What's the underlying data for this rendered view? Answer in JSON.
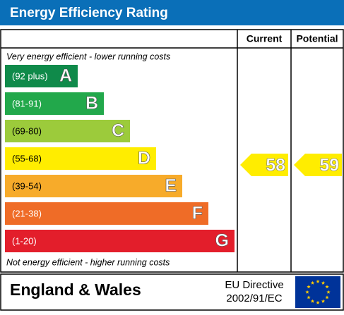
{
  "header": {
    "title": "Energy Efficiency Rating"
  },
  "columns": {
    "current": "Current",
    "potential": "Potential"
  },
  "top_note": "Very energy efficient - lower running costs",
  "bottom_note": "Not energy efficient - higher running costs",
  "bands": [
    {
      "range": "(92 plus)",
      "letter": "A",
      "color": "#0f8a4a"
    },
    {
      "range": "(81-91)",
      "letter": "B",
      "color": "#22a84b"
    },
    {
      "range": "(69-80)",
      "letter": "C",
      "color": "#9ccb3b"
    },
    {
      "range": "(55-68)",
      "letter": "D",
      "color": "#ffed00"
    },
    {
      "range": "(39-54)",
      "letter": "E",
      "color": "#f7ab2a"
    },
    {
      "range": "(21-38)",
      "letter": "F",
      "color": "#ef6c27"
    },
    {
      "range": "(1-20)",
      "letter": "G",
      "color": "#e31e2b"
    }
  ],
  "ratings": {
    "current": {
      "value": 58,
      "color": "#ffed00"
    },
    "potential": {
      "value": 59,
      "color": "#ffed00"
    }
  },
  "footer": {
    "region": "England & Wales",
    "directive_line1": "EU Directive",
    "directive_line2": "2002/91/EC"
  }
}
